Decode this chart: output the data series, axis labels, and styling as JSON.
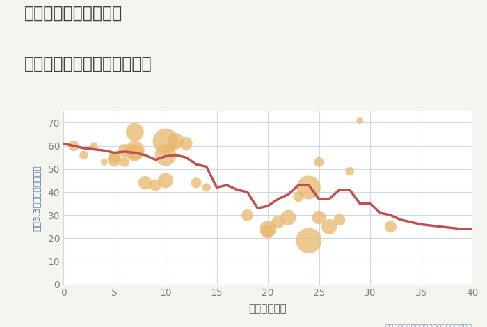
{
  "title_line1": "愛知県常滑市小倉町の",
  "title_line2": "築年数別中古マンション価格",
  "xlabel": "築年数（年）",
  "ylabel": "坪（3.3㎡）単価（万円）",
  "annotation": "円の大きさは、取引のあった物件面積を示す",
  "background_color": "#f5f5f0",
  "plot_bg_color": "#ffffff",
  "xlim": [
    0,
    40
  ],
  "ylim": [
    0,
    75
  ],
  "xticks": [
    0,
    5,
    10,
    15,
    20,
    25,
    30,
    35,
    40
  ],
  "yticks": [
    0,
    10,
    20,
    30,
    40,
    50,
    60,
    70
  ],
  "line_x": [
    0,
    1,
    2,
    3,
    4,
    5,
    6,
    7,
    8,
    9,
    10,
    11,
    12,
    13,
    14,
    15,
    16,
    17,
    18,
    19,
    20,
    21,
    22,
    23,
    24,
    25,
    26,
    27,
    28,
    29,
    30,
    31,
    32,
    33,
    34,
    35,
    36,
    37,
    38,
    39,
    40
  ],
  "line_y": [
    61,
    60,
    59,
    58.5,
    58,
    57,
    57.5,
    57,
    56,
    54,
    55.5,
    56,
    55,
    52,
    51,
    42,
    43,
    41,
    40,
    33,
    34,
    37,
    39,
    43,
    43,
    37,
    37,
    41,
    41,
    35,
    35,
    31,
    30,
    28,
    27,
    26,
    25.5,
    25,
    24.5,
    24,
    24
  ],
  "scatter_x": [
    1,
    2,
    3,
    4,
    5,
    5,
    6,
    6,
    7,
    7,
    7,
    8,
    9,
    10,
    10,
    10,
    11,
    12,
    13,
    14,
    18,
    20,
    20,
    21,
    22,
    23,
    24,
    24,
    25,
    25,
    26,
    27,
    28,
    29,
    32
  ],
  "scatter_y": [
    60,
    56,
    60,
    53,
    54,
    55,
    58,
    53,
    58,
    66,
    57,
    44,
    43,
    62,
    45,
    56,
    62,
    61,
    44,
    42,
    30,
    23,
    24,
    27,
    29,
    38,
    42,
    19,
    29,
    53,
    25,
    28,
    49,
    71,
    25
  ],
  "scatter_size": [
    120,
    80,
    60,
    50,
    200,
    150,
    180,
    100,
    400,
    350,
    300,
    200,
    150,
    700,
    250,
    500,
    300,
    180,
    120,
    80,
    150,
    200,
    300,
    180,
    250,
    120,
    600,
    700,
    200,
    100,
    250,
    150,
    80,
    50,
    150
  ],
  "scatter_color": "#e8b86d",
  "scatter_alpha": 0.75,
  "line_color": "#c0504d",
  "line_width": 2.5,
  "title_color": "#404040",
  "title_fontsize": 17,
  "ylabel_color": "#5b7fa6",
  "axis_tick_color": "#606060",
  "annotation_color": "#7a9abf",
  "grid_color": "#d0d8e8",
  "tick_color": "#808080"
}
